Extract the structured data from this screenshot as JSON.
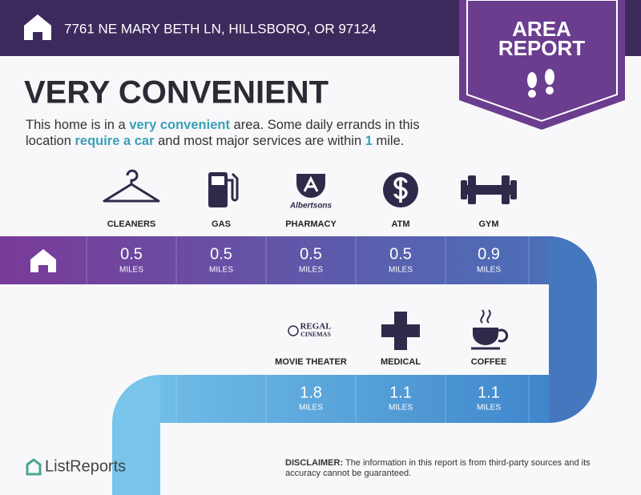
{
  "header": {
    "address": "7761 NE MARY BETH LN, HILLSBORO, OR 97124",
    "badge": [
      "AREA",
      "REPORT"
    ]
  },
  "headline": "VERY CONVENIENT",
  "summary": [
    "This home is in a ",
    "very convenient",
    " area. Some daily errands in this location ",
    "require a car",
    " and most major services are within ",
    "1",
    " mile."
  ],
  "rows": [
    {
      "items": [
        {
          "label": "CLEANERS",
          "distance": 0.5,
          "unit": "MILES"
        },
        {
          "label": "GAS",
          "distance": 0.5,
          "unit": "MILES"
        },
        {
          "label": "PHARMACY",
          "logo": [
            "Albertsons"
          ],
          "distance": 0.5,
          "unit": "MILES"
        },
        {
          "label": "ATM",
          "distance": 0.5,
          "unit": "MILES"
        },
        {
          "label": "GYM",
          "distance": 0.9,
          "unit": "MILES"
        }
      ]
    },
    {
      "items": [
        {
          "label": "MOVIE THEATER",
          "logo": [
            "REGAL",
            "CINEMAS"
          ],
          "distance": 1.8,
          "unit": "MILES"
        },
        {
          "label": "MEDICAL",
          "distance": 1.1,
          "unit": "MILES"
        },
        {
          "label": "COFFEE",
          "distance": 1.1,
          "unit": "MILES"
        }
      ]
    }
  ],
  "disclaimer": {
    "label": "DISCLAIMER:",
    "text": "The information in this report is from third-party sources and its accuracy cannot be guaranteed."
  },
  "brand": "ListReports"
}
